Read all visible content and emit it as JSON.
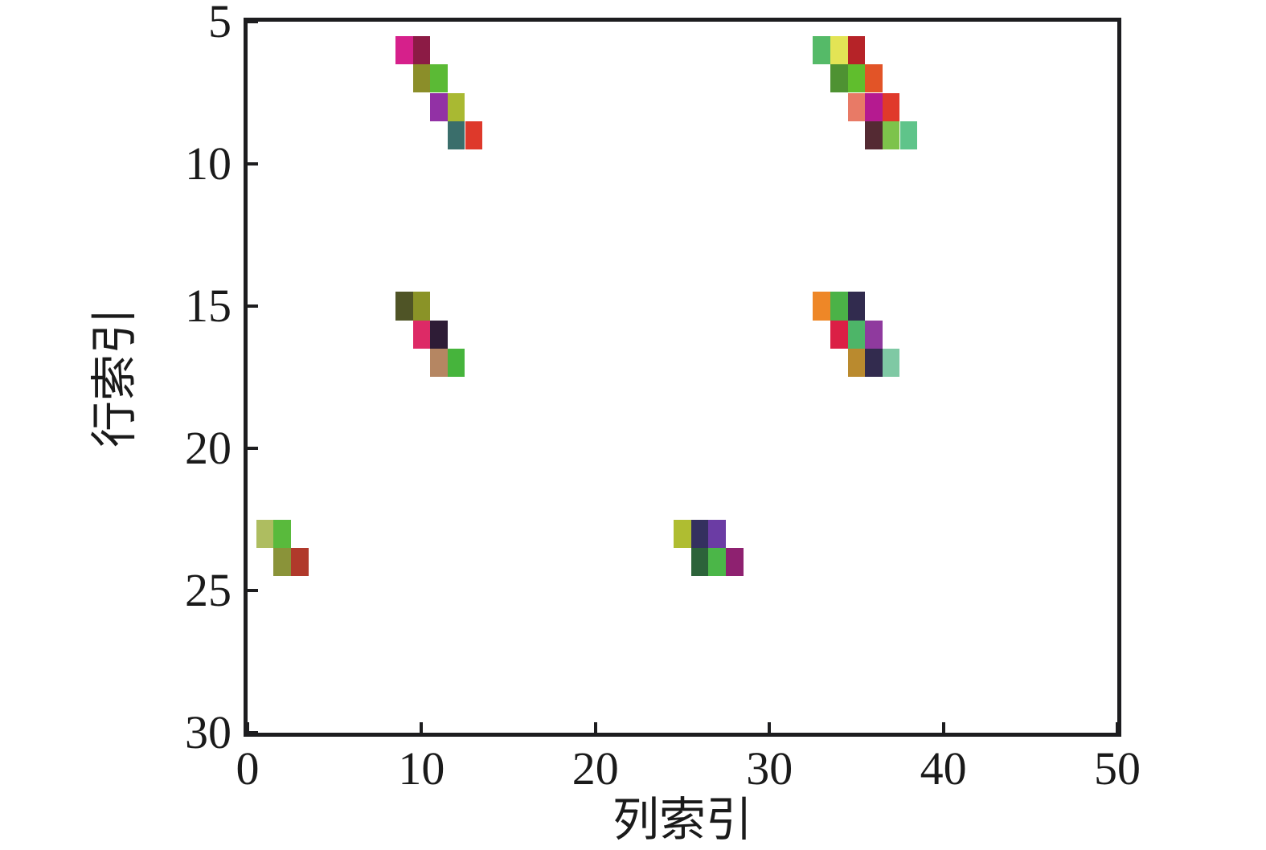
{
  "chart_data": {
    "type": "heatmap",
    "title": "",
    "xlabel": "列索引",
    "ylabel": "行索引",
    "xlim": [
      0,
      50
    ],
    "ylim": [
      30,
      5
    ],
    "y_axis_inverted": true,
    "grid": false,
    "legend": "none",
    "x_ticks": [
      0,
      10,
      20,
      30,
      40,
      50
    ],
    "y_ticks": [
      5,
      10,
      15,
      20,
      25,
      30
    ],
    "cell_size": {
      "width": 1,
      "height": 1
    },
    "cells": [
      {
        "col": 9,
        "row": 6,
        "color": "#d6208b"
      },
      {
        "col": 10,
        "row": 6,
        "color": "#8c1b45"
      },
      {
        "col": 10,
        "row": 7,
        "color": "#8b8e29"
      },
      {
        "col": 11,
        "row": 7,
        "color": "#5bba35"
      },
      {
        "col": 11,
        "row": 8,
        "color": "#9231a5"
      },
      {
        "col": 12,
        "row": 8,
        "color": "#a9b932"
      },
      {
        "col": 12,
        "row": 9,
        "color": "#3a6e6b"
      },
      {
        "col": 13,
        "row": 9,
        "color": "#de392b"
      },
      {
        "col": 33,
        "row": 6,
        "color": "#55ba68"
      },
      {
        "col": 34,
        "row": 6,
        "color": "#e3e455"
      },
      {
        "col": 35,
        "row": 6,
        "color": "#b62328"
      },
      {
        "col": 34,
        "row": 7,
        "color": "#4e9232"
      },
      {
        "col": 35,
        "row": 7,
        "color": "#60be2d"
      },
      {
        "col": 36,
        "row": 7,
        "color": "#e25427"
      },
      {
        "col": 35,
        "row": 8,
        "color": "#e87a66"
      },
      {
        "col": 36,
        "row": 8,
        "color": "#b51a90"
      },
      {
        "col": 37,
        "row": 8,
        "color": "#e0392b"
      },
      {
        "col": 36,
        "row": 9,
        "color": "#542a33"
      },
      {
        "col": 37,
        "row": 9,
        "color": "#7dc34b"
      },
      {
        "col": 38,
        "row": 9,
        "color": "#5fc48a"
      },
      {
        "col": 9,
        "row": 15,
        "color": "#4f5426"
      },
      {
        "col": 10,
        "row": 15,
        "color": "#8a9327"
      },
      {
        "col": 10,
        "row": 16,
        "color": "#dd2a66"
      },
      {
        "col": 11,
        "row": 16,
        "color": "#2e1c36"
      },
      {
        "col": 11,
        "row": 17,
        "color": "#b58662"
      },
      {
        "col": 12,
        "row": 17,
        "color": "#46b43c"
      },
      {
        "col": 33,
        "row": 15,
        "color": "#ee8727"
      },
      {
        "col": 34,
        "row": 15,
        "color": "#4bb247"
      },
      {
        "col": 35,
        "row": 15,
        "color": "#312b4e"
      },
      {
        "col": 34,
        "row": 16,
        "color": "#db1f45"
      },
      {
        "col": 35,
        "row": 16,
        "color": "#4db568"
      },
      {
        "col": 36,
        "row": 16,
        "color": "#8f3a9e"
      },
      {
        "col": 35,
        "row": 17,
        "color": "#ba8a2e"
      },
      {
        "col": 36,
        "row": 17,
        "color": "#322b4e"
      },
      {
        "col": 37,
        "row": 17,
        "color": "#7fc9a4"
      },
      {
        "col": 1,
        "row": 23,
        "color": "#aebd60"
      },
      {
        "col": 2,
        "row": 23,
        "color": "#59ba3c"
      },
      {
        "col": 2,
        "row": 24,
        "color": "#8a9339"
      },
      {
        "col": 3,
        "row": 24,
        "color": "#b0392b"
      },
      {
        "col": 25,
        "row": 23,
        "color": "#afbd31"
      },
      {
        "col": 26,
        "row": 23,
        "color": "#34305f"
      },
      {
        "col": 27,
        "row": 23,
        "color": "#6b3ca4"
      },
      {
        "col": 26,
        "row": 24,
        "color": "#2c633a"
      },
      {
        "col": 27,
        "row": 24,
        "color": "#4bb648"
      },
      {
        "col": 28,
        "row": 24,
        "color": "#8e2170"
      }
    ],
    "colors": {
      "axis": "#1d1d1f",
      "text": "#1a1a1a",
      "background": "#ffffff"
    }
  }
}
